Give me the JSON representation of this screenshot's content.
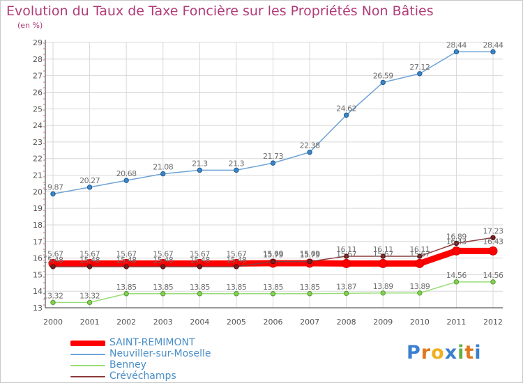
{
  "header": {
    "title": "Evolution du Taux de Taxe Foncière sur les Propriétés Non Bâties",
    "unit": "(en %)"
  },
  "colors": {
    "title": "#b23a78",
    "grid": "#d8d8d8",
    "axis": "#555555",
    "legend_text": "#4a8ec7",
    "label_text": "#6e6e6e"
  },
  "chart_data": {
    "type": "line",
    "title": "Evolution du Taux de Taxe Foncière sur les Propriétés Non Bâties",
    "ylabel": "(en %)",
    "xlabel": "",
    "x": [
      "2000",
      "2001",
      "2002",
      "2003",
      "2004",
      "2005",
      "2006",
      "2007",
      "2008",
      "2009",
      "2010",
      "2011",
      "2012"
    ],
    "ylim": [
      13,
      29
    ],
    "yticks": [
      13,
      14,
      15,
      16,
      17,
      18,
      19,
      20,
      21,
      22,
      23,
      24,
      25,
      26,
      27,
      28,
      29
    ],
    "grid": true,
    "legend_position": "bottom-left",
    "series": [
      {
        "name": "SAINT-REMIMONT",
        "color": "#ff0000",
        "values": [
          15.67,
          15.67,
          15.67,
          15.67,
          15.67,
          15.67,
          15.69,
          15.69,
          15.67,
          15.67,
          15.67,
          16.43,
          16.43
        ],
        "labels": [
          "15.67",
          "15.67",
          "15.67",
          "15.67",
          "15.67",
          "15.67",
          "15.69",
          "15.69",
          "15.67",
          "15.67",
          "15.67",
          "16.43",
          "16.43"
        ]
      },
      {
        "name": "Neuviller-sur-Moselle",
        "color": "#6fa3d6",
        "values": [
          19.87,
          20.27,
          20.68,
          21.08,
          21.3,
          21.3,
          21.73,
          22.38,
          24.62,
          26.59,
          27.12,
          28.44,
          28.44
        ],
        "labels": [
          "19.87",
          "20.27",
          "20.68",
          "21.08",
          "21.3",
          "21.3",
          "21.73",
          "22.38",
          "24.62",
          "26.59",
          "27.12",
          "28.44",
          "28.44"
        ]
      },
      {
        "name": "Benney",
        "color": "#99dd77",
        "values": [
          13.32,
          13.32,
          13.85,
          13.85,
          13.85,
          13.85,
          13.85,
          13.85,
          13.87,
          13.89,
          13.89,
          14.56,
          14.56
        ],
        "labels": [
          "13.32",
          "13.32",
          "13.85",
          "13.85",
          "13.85",
          "13.85",
          "13.85",
          "13.85",
          "13.87",
          "13.89",
          "13.89",
          "14.56",
          "14.56"
        ]
      },
      {
        "name": "Crévéchamps",
        "color": "#8b3a3a",
        "values": [
          15.48,
          15.48,
          15.48,
          15.48,
          15.48,
          15.48,
          15.79,
          15.79,
          16.11,
          16.11,
          16.11,
          16.89,
          17.23
        ],
        "labels": [
          "15.48",
          "15.48",
          "15.48",
          "15.48",
          "15.48",
          "15.48",
          "15.79",
          "15.79",
          "16.11",
          "16.11",
          "16.11",
          "16.89",
          "17.23"
        ]
      }
    ]
  },
  "logo": {
    "letters": [
      "P",
      "r",
      "o",
      "x",
      "i",
      "t",
      "i"
    ],
    "colors": [
      "#3a7fd0",
      "#e07820",
      "#f0b020",
      "#3a7fd0",
      "#60b040",
      "#e07820",
      "#3a7fd0"
    ]
  }
}
